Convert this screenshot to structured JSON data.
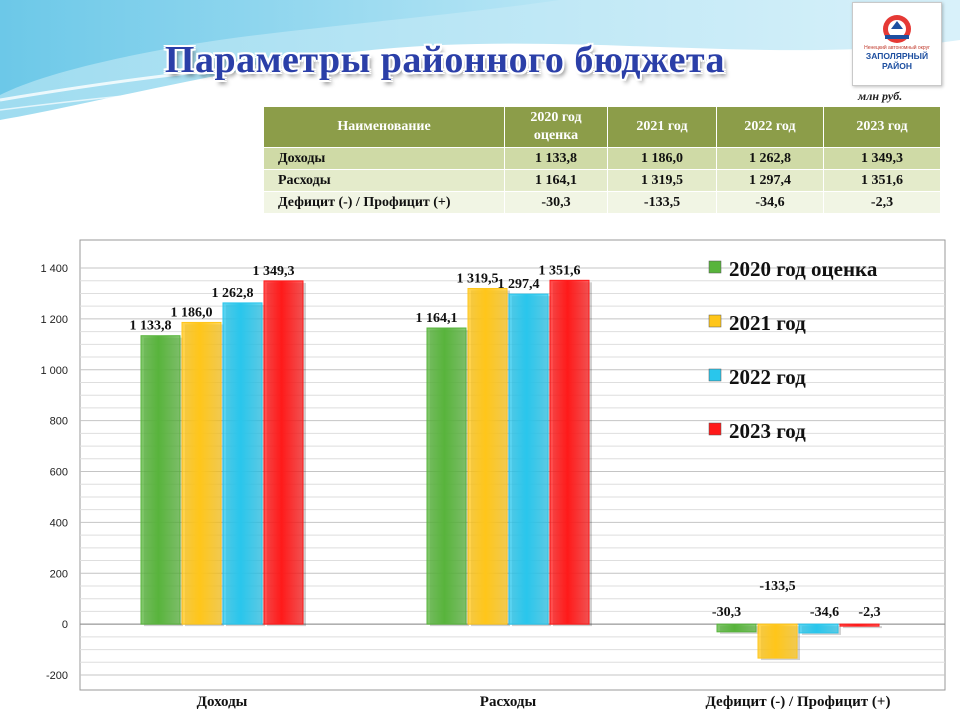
{
  "title": "Параметры районного бюджета",
  "unit": "млн руб.",
  "logo": {
    "top_text": "Ненецкий автономный округ",
    "name_line1": "ЗАПОЛЯРНЫЙ",
    "name_line2": "РАЙОН"
  },
  "table": {
    "headers": [
      "Наименование",
      "2020 год оценка",
      "2021 год",
      "2022 год",
      "2023 год"
    ],
    "rows": [
      [
        "Доходы",
        "1 133,8",
        "1 186,0",
        "1 262,8",
        "1 349,3"
      ],
      [
        "Расходы",
        "1 164,1",
        "1 319,5",
        "1 297,4",
        "1 351,6"
      ],
      [
        "Дефицит (-) / Профицит (+)",
        "-30,3",
        "-133,5",
        "-34,6",
        "-2,3"
      ]
    ]
  },
  "chart_data": {
    "type": "bar",
    "categories": [
      "Доходы",
      "Расходы",
      "Дефицит (-) / Профицит (+)"
    ],
    "series": [
      {
        "name": "2020 год оценка",
        "color": "#58b43c",
        "values": [
          1133.8,
          1164.1,
          -30.3
        ],
        "labels": [
          "1 133,8",
          "1 164,1",
          "-30,3"
        ]
      },
      {
        "name": "2021 год",
        "color": "#ffc61a",
        "values": [
          1186.0,
          1319.5,
          -133.5
        ],
        "labels": [
          "1 186,0",
          "1 319,5",
          "-133,5"
        ]
      },
      {
        "name": "2022 год",
        "color": "#29c6ec",
        "values": [
          1262.8,
          1297.4,
          -34.6
        ],
        "labels": [
          "1 262,8",
          "1 297,4",
          "-34,6"
        ]
      },
      {
        "name": "2023 год",
        "color": "#ff1a1a",
        "values": [
          1349.3,
          1351.6,
          -2.3
        ],
        "labels": [
          "1 349,3",
          "1 351,6",
          "-2,3"
        ]
      }
    ],
    "ylim": [
      -200,
      1400
    ],
    "yticks": [
      -200,
      0,
      200,
      400,
      600,
      800,
      1000,
      1200,
      1400
    ],
    "ytick_labels": [
      "-200",
      "0",
      "200",
      "400",
      "600",
      "800",
      "1 000",
      "1 200",
      "1 400"
    ],
    "grid": true,
    "legend": "right"
  }
}
